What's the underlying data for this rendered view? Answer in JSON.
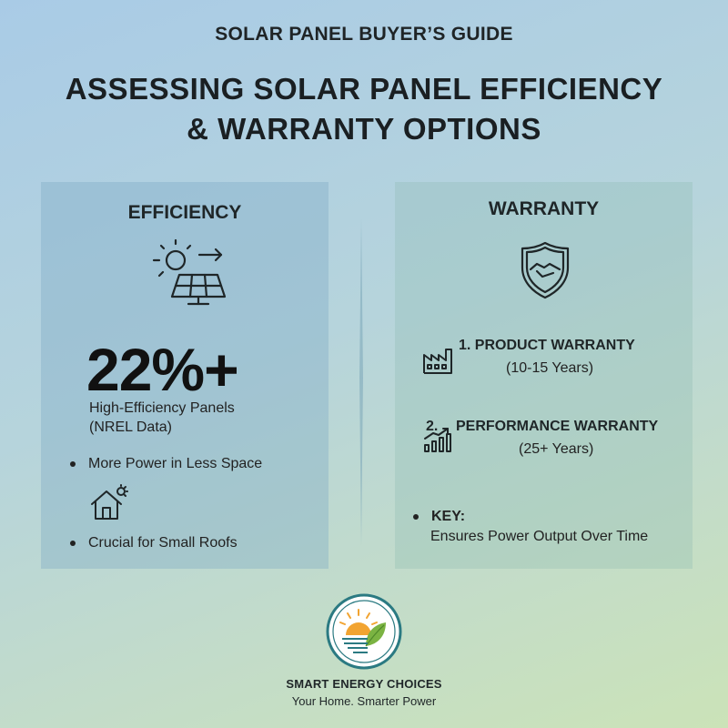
{
  "header": {
    "eyebrow": "SOLAR PANEL BUYER’S GUIDE",
    "title_line1": "ASSESSING SOLAR PANEL EFFICIENCY",
    "title_line2": "& WARRANTY OPTIONS"
  },
  "efficiency": {
    "heading": "EFFICIENCY",
    "icon": "solar-panel-sun-icon",
    "stat": "22%+",
    "stat_label_line1": "High-Efficiency Panels",
    "stat_label_line2": "(NREL Data)",
    "bullets": [
      {
        "text": "More Power in Less Space"
      },
      {
        "text": "Crucial for Small Roofs",
        "icon": "house-sun-icon"
      }
    ]
  },
  "warranty": {
    "heading": "WARRANTY",
    "icon": "shield-handshake-icon",
    "items": [
      {
        "title": "1. PRODUCT WARRANTY",
        "subtitle": "(10-15 Years)",
        "icon": "factory-icon"
      },
      {
        "title": "2. PERFORMANCE WARRANTY",
        "subtitle": "(25+ Years)",
        "icon": "growth-chart-icon"
      }
    ],
    "key_label": "KEY:",
    "key_text": "Ensures Power Output Over Time"
  },
  "footer": {
    "logo_icon": "sun-leaf-logo",
    "brand": "SMART ENERGY CHOICES",
    "tagline": "Your Home. Smarter Power"
  },
  "colors": {
    "text": "#1d2327",
    "logo_ring": "#2b7a82",
    "sun": "#f2a431",
    "leaf": "#7bb342"
  }
}
